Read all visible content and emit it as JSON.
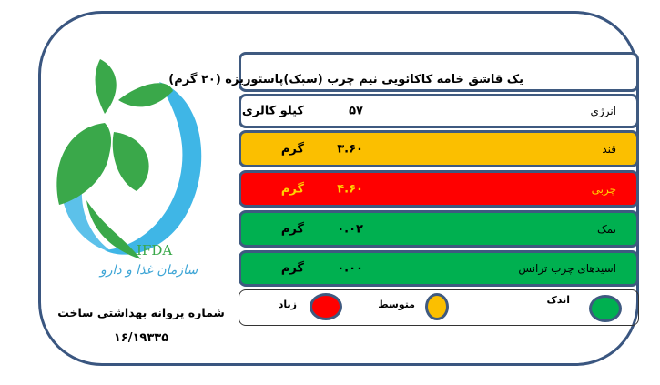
{
  "product_title": "یک قاشق  خامه کاکائویی نیم چرب (سبک)پاستوریزه (۲۰ گرم)",
  "rows": [
    {
      "label": "انرژی",
      "value": "۵۷",
      "unit": "کیلو کالری",
      "color": "#ffffff",
      "text_color": "#000000"
    },
    {
      "label": "قند",
      "value": "۳.۶۰",
      "unit": "گرم",
      "color": "#fbbf00",
      "text_color": "#000000"
    },
    {
      "label": "چربی",
      "value": "۴.۶۰",
      "unit": "گرم",
      "color": "#ff0000",
      "text_color": "#ffd200"
    },
    {
      "label": "نمک",
      "value": "۰.۰۲",
      "unit": "گرم",
      "color": "#00b050",
      "text_color": "#000000"
    },
    {
      "label": "اسیدهای چرب ترانس",
      "value": "۰.۰۰",
      "unit": "گرم",
      "color": "#00b050",
      "text_color": "#000000"
    }
  ],
  "legend": {
    "low": "اندک",
    "medium": "متوسط",
    "high": "زیاد",
    "low_color": "#00b050",
    "medium_color": "#fbbf00",
    "high_color": "#ff0000"
  },
  "logo": {
    "text_en": "IFDA",
    "text_fa": "سازمان غذا و دارو"
  },
  "permit": {
    "label": "شماره پروانه بهداشتی ساخت",
    "number": "۱۶/۱۹۳۳۵"
  }
}
